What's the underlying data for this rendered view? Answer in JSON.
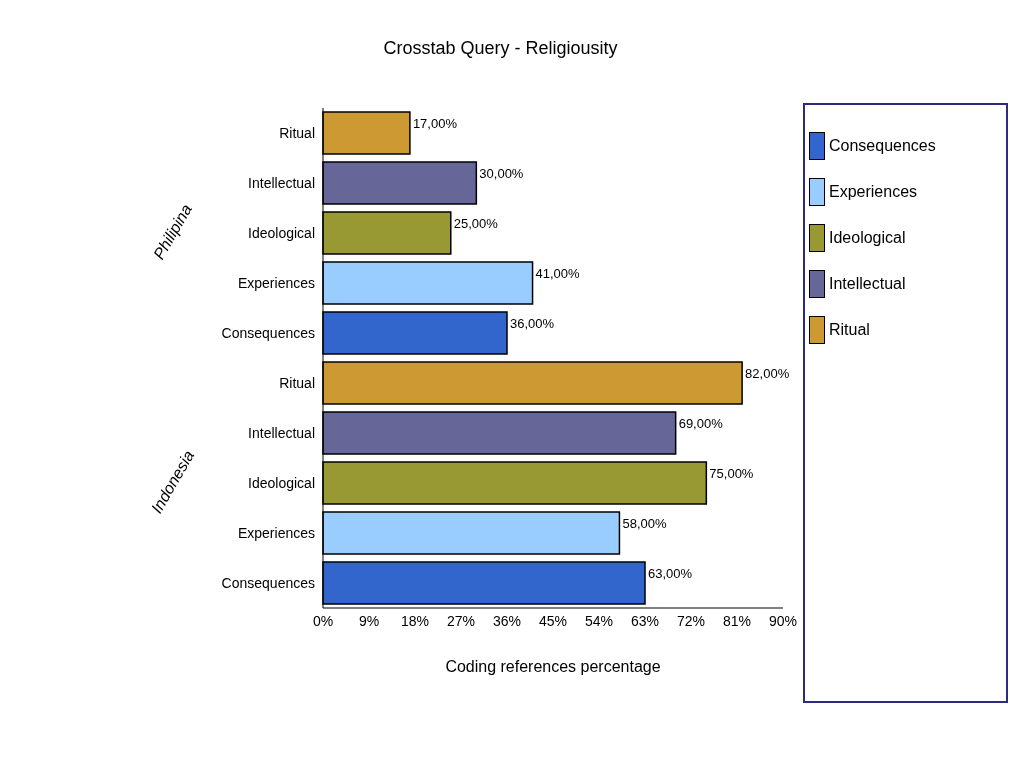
{
  "chart_data": {
    "type": "bar",
    "orientation": "horizontal",
    "stacked": true,
    "title": "Crosstab Query - Religiousity",
    "xlabel": "Coding references percentage",
    "annotations": [
      "Philipina",
      "Indonesia"
    ],
    "categories": [
      "Ritual",
      "Intellectual",
      "Ideological",
      "Experiences",
      "Consequences",
      "Ritual",
      "Intellectual",
      "Ideological",
      "Experiences",
      "Consequences"
    ],
    "series": [
      {
        "name": "Consequences",
        "color": "#3366cc",
        "values": [
          null,
          null,
          null,
          null,
          36,
          null,
          null,
          null,
          null,
          63
        ],
        "value_labels": [
          null,
          null,
          null,
          null,
          "36,00%",
          null,
          null,
          null,
          null,
          "63,00%"
        ]
      },
      {
        "name": "Experiences",
        "color": "#99ccff",
        "values": [
          null,
          null,
          null,
          41,
          null,
          null,
          null,
          null,
          58,
          null
        ],
        "value_labels": [
          null,
          null,
          null,
          "41,00%",
          null,
          null,
          null,
          null,
          "58,00%",
          null
        ]
      },
      {
        "name": "Ideological",
        "color": "#999933",
        "values": [
          null,
          null,
          25,
          null,
          null,
          null,
          null,
          75,
          null,
          null
        ],
        "value_labels": [
          null,
          null,
          "25,00%",
          null,
          null,
          null,
          null,
          "75,00%",
          null,
          null
        ]
      },
      {
        "name": "Intellectual",
        "color": "#666699",
        "values": [
          null,
          30,
          null,
          null,
          null,
          null,
          69,
          null,
          null,
          null
        ],
        "value_labels": [
          null,
          "30,00%",
          null,
          null,
          null,
          null,
          "69,00%",
          null,
          null,
          null
        ]
      },
      {
        "name": "Ritual",
        "color": "#cc9933",
        "values": [
          17,
          null,
          null,
          null,
          null,
          82,
          null,
          null,
          null,
          null
        ],
        "value_labels": [
          "17,00%",
          null,
          null,
          null,
          null,
          "82,00%",
          null,
          null,
          null,
          null
        ]
      }
    ],
    "xlim": [
      0,
      90
    ],
    "xticks": [
      {
        "value": 0,
        "label": "0%"
      },
      {
        "value": 9,
        "label": "9%"
      },
      {
        "value": 18,
        "label": "18%"
      },
      {
        "value": 27,
        "label": "27%"
      },
      {
        "value": 36,
        "label": "36%"
      },
      {
        "value": 45,
        "label": "45%"
      },
      {
        "value": 54,
        "label": "54%"
      },
      {
        "value": 63,
        "label": "63%"
      },
      {
        "value": 72,
        "label": "72%"
      },
      {
        "value": 81,
        "label": "81%"
      },
      {
        "value": 90,
        "label": "90%"
      }
    ],
    "legend": "right",
    "grid": false
  }
}
